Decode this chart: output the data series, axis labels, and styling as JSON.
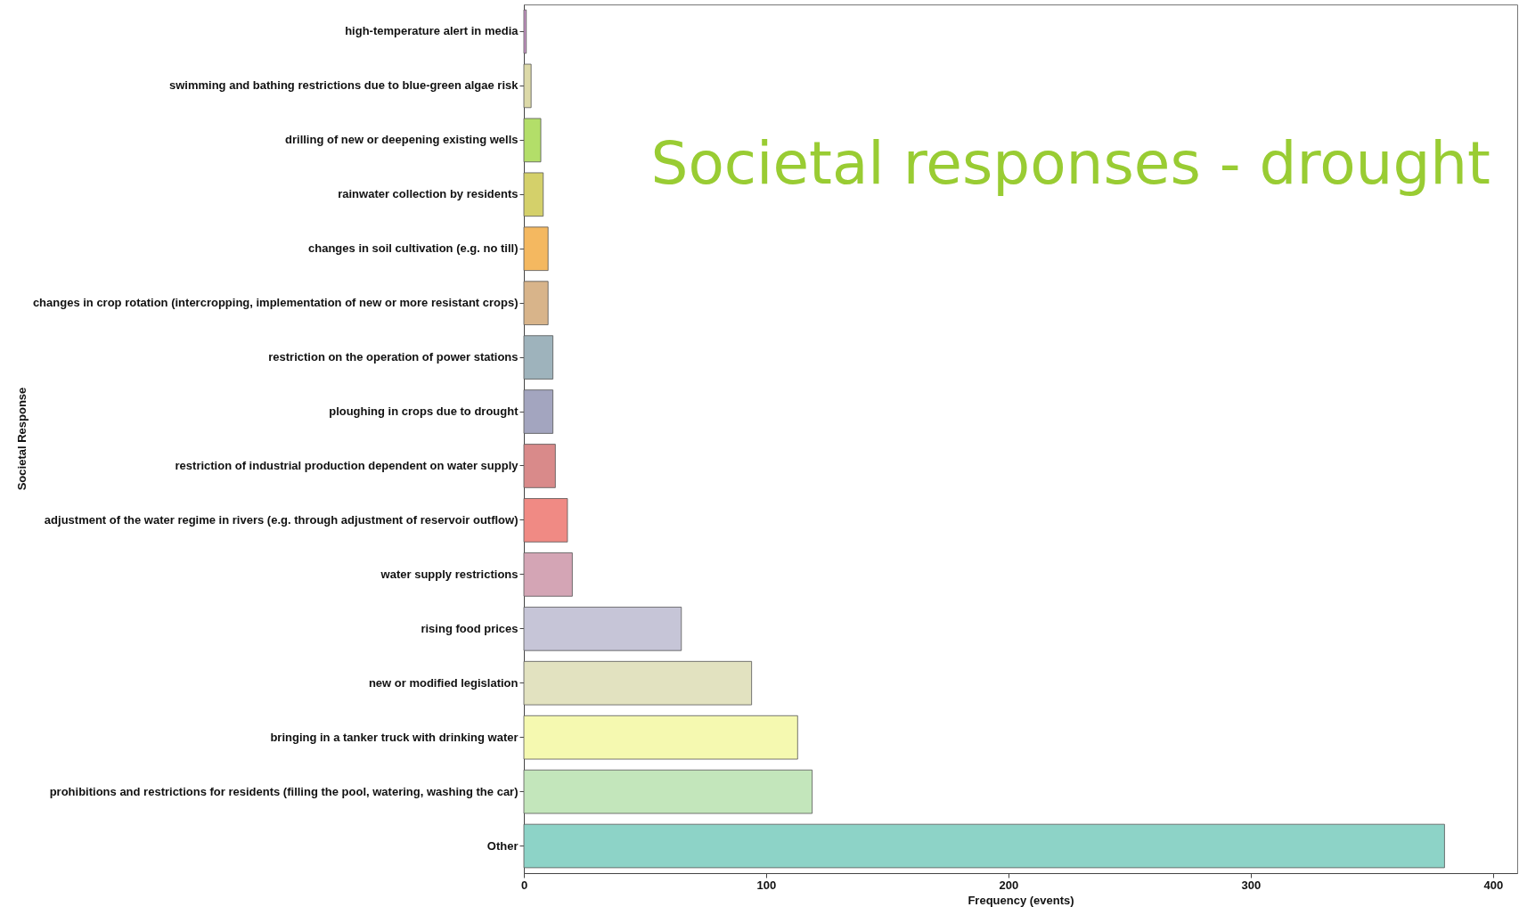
{
  "chart_data": {
    "type": "bar",
    "orientation": "horizontal",
    "title": "Societal responses - drought",
    "xlabel": "Frequency (events)",
    "ylabel": "Societal Response",
    "categories": [
      "high-temperature alert in media",
      "swimming and bathing restrictions due to blue-green algae risk",
      "drilling of new or deepening existing wells",
      "rainwater collection by residents",
      "changes in soil cultivation (e.g. no till)",
      "changes in crop rotation (intercropping, implementation of new or more resistant crops)",
      "restriction on the operation of power stations",
      "ploughing in crops due to drought",
      "restriction of industrial production dependent on water supply",
      "adjustment of the water regime in rivers (e.g. through adjustment of reservoir outflow)",
      "water supply restrictions",
      "rising food prices",
      "new or modified legislation",
      "bringing in a tanker truck with drinking water",
      "prohibitions and restrictions for residents (filling the pool, watering, washing the car)",
      "Other"
    ],
    "values": [
      1,
      3,
      7,
      8,
      10,
      10,
      12,
      12,
      13,
      18,
      20,
      65,
      94,
      113,
      119,
      380
    ],
    "colors": [
      "#c994c7",
      "#dcd9a8",
      "#b3de69",
      "#d4d06a",
      "#f4b860",
      "#d8b48a",
      "#9eb3bc",
      "#a3a5bf",
      "#d98a8a",
      "#f08a84",
      "#d4a5b5",
      "#c6c5d7",
      "#e2e2c0",
      "#f5f9b0",
      "#c3e6bb",
      "#8dd3c7"
    ],
    "xlim": [
      0,
      410
    ],
    "xticks": [
      0,
      100,
      200,
      300,
      400
    ],
    "grid": false,
    "legend": false
  }
}
